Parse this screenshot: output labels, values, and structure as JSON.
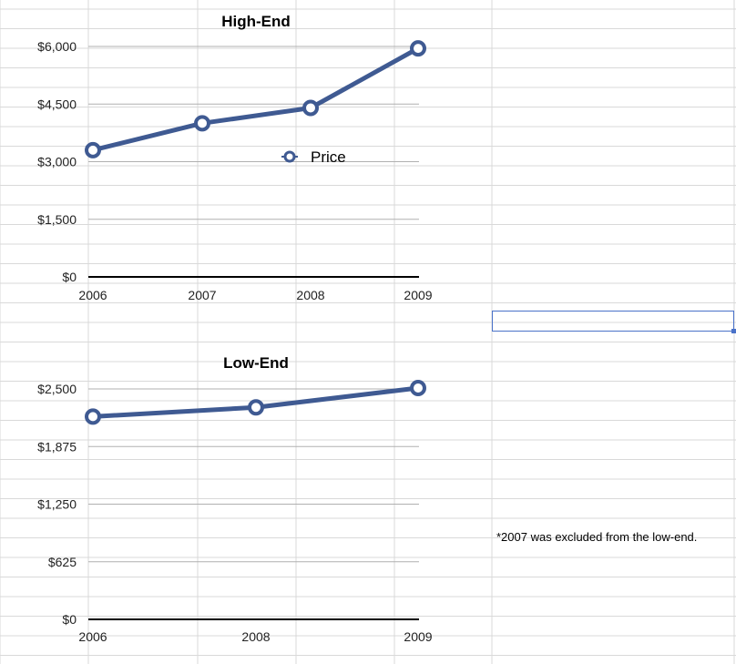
{
  "chart_data": [
    {
      "type": "line",
      "title": "High-End",
      "categories": [
        "2006",
        "2007",
        "2008",
        "2009"
      ],
      "series": [
        {
          "name": "Price",
          "values": [
            3300,
            4000,
            4400,
            5950
          ]
        }
      ],
      "ylim": [
        0,
        6000
      ],
      "yticks": [
        0,
        1500,
        3000,
        4500,
        6000
      ],
      "ytick_labels": [
        "$0",
        "$1,500",
        "$3,000",
        "$4,500",
        "$6,000"
      ],
      "xlabel": "",
      "ylabel": "",
      "legend": {
        "label": "Price",
        "placement": "center-right"
      },
      "grid": true
    },
    {
      "type": "line",
      "title": "Low-End",
      "categories": [
        "2006",
        "2008",
        "2009"
      ],
      "series": [
        {
          "name": "Price",
          "values": [
            2200,
            2300,
            2510
          ]
        }
      ],
      "ylim": [
        0,
        2500
      ],
      "yticks": [
        0,
        625,
        1250,
        1875,
        2500
      ],
      "ytick_labels": [
        "$0",
        "$625",
        "$1,250",
        "$1,875",
        "$2,500"
      ],
      "xlabel": "",
      "ylabel": "",
      "grid": true
    }
  ],
  "note": "*2007 was excluded from the low-end.",
  "colors": {
    "series": "#3f5a92",
    "marker_fill": "#ffffff",
    "gridline": "#b0b0b0",
    "axis": "#000000",
    "sheet_grid": "#d9d9d9",
    "selection": "#4a72c9"
  }
}
